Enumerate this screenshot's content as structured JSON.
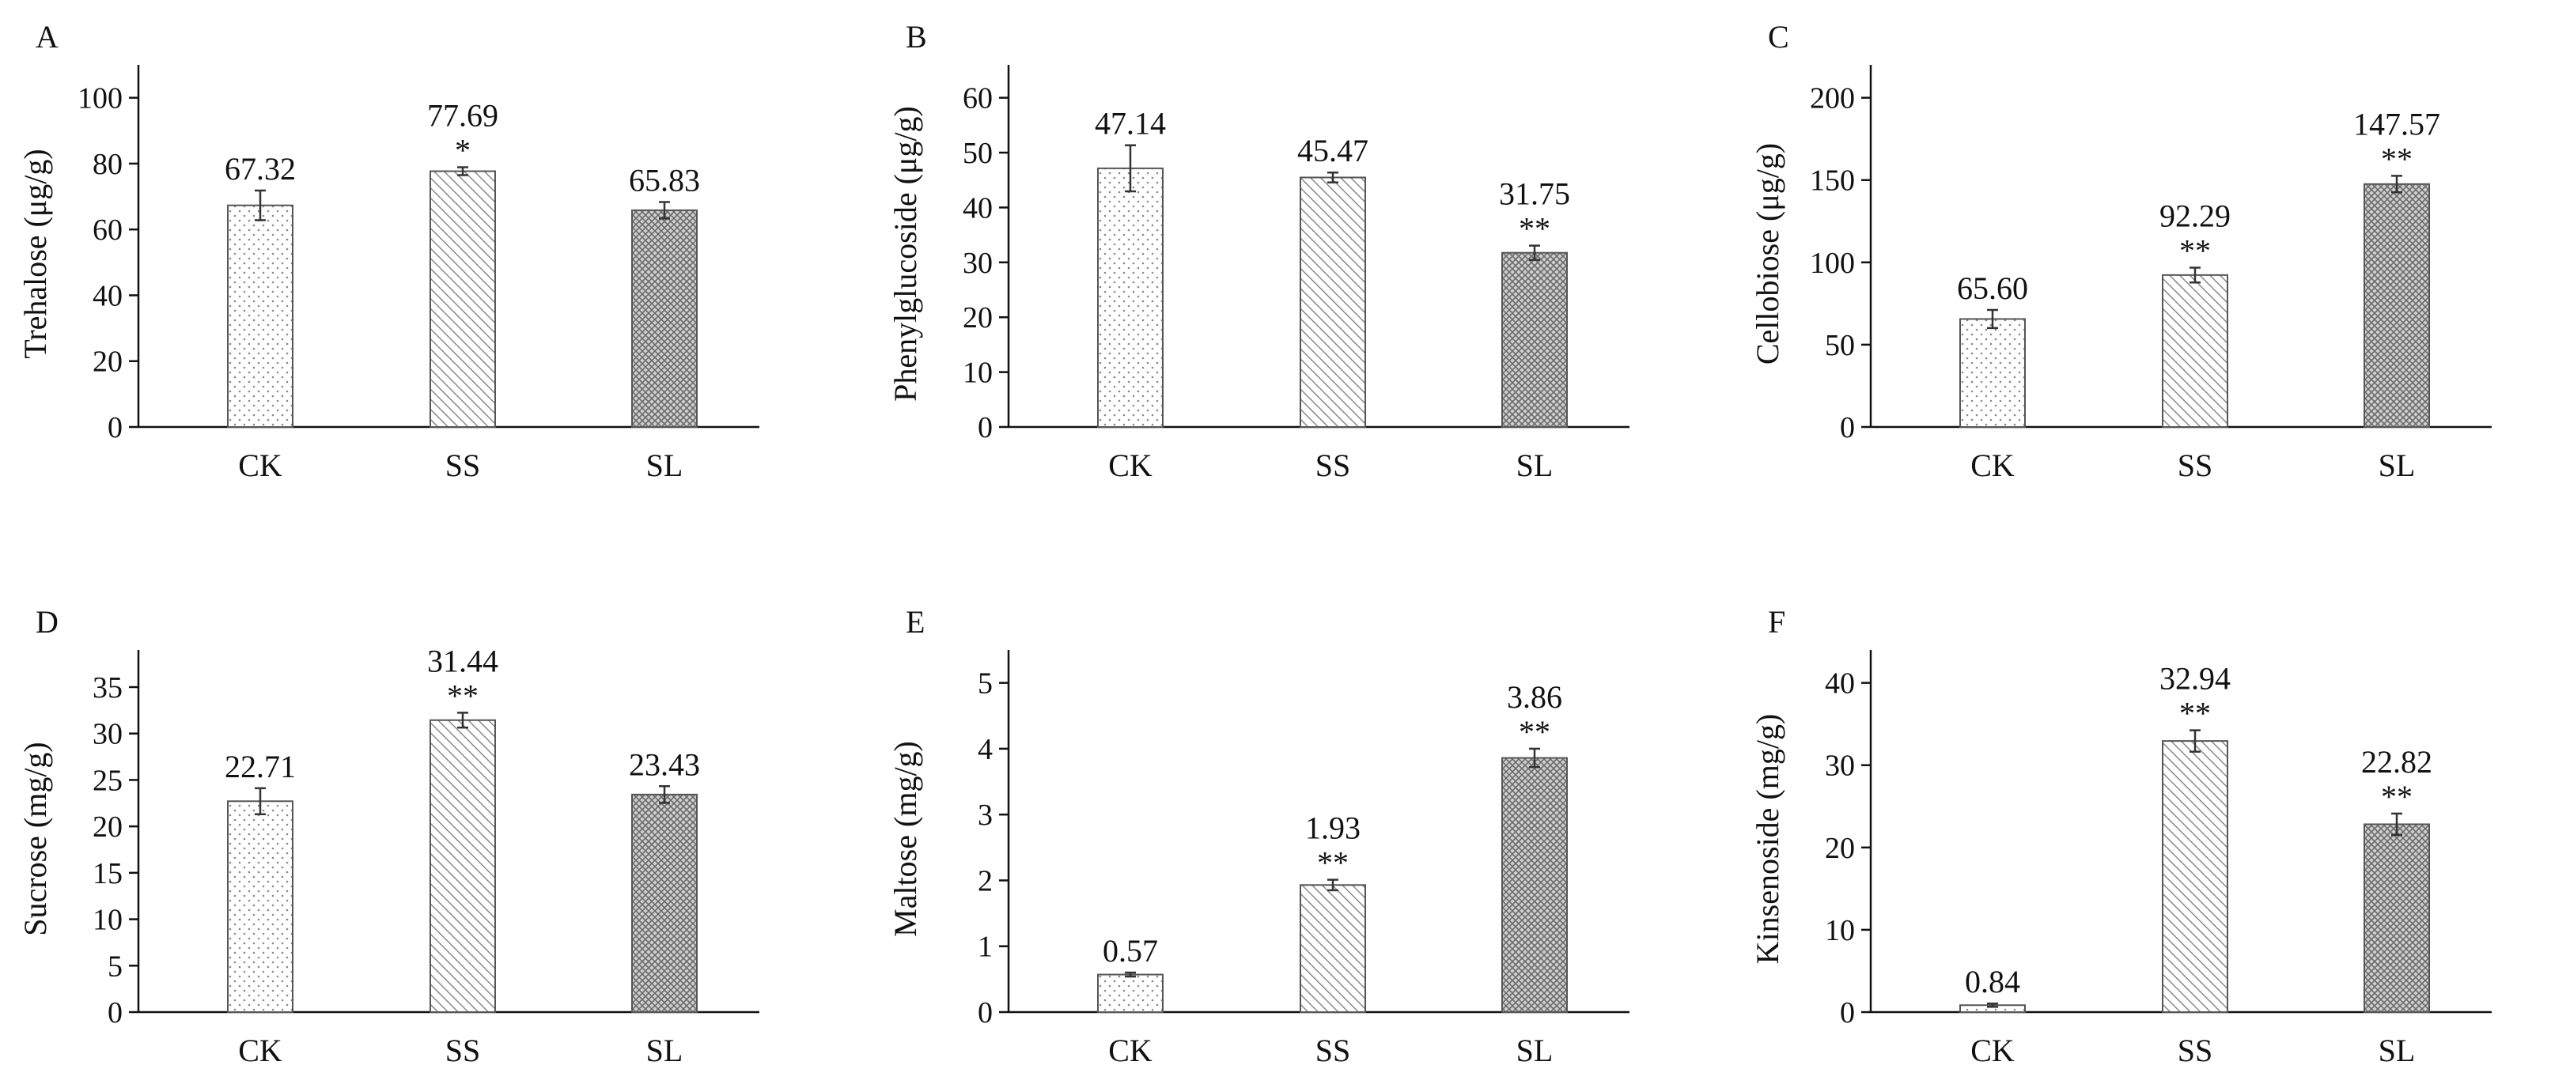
{
  "chart_data": [
    {
      "panel": "A",
      "type": "bar",
      "ylabel": "Trehalose (μg/g)",
      "categories": [
        "CK",
        "SS",
        "SL"
      ],
      "values": [
        67.32,
        77.69,
        65.83
      ],
      "value_labels": [
        "67.32",
        "77.69",
        "65.83"
      ],
      "errors": [
        4.5,
        1.2,
        2.5
      ],
      "significance": [
        "",
        "*",
        ""
      ],
      "ylim": [
        0,
        110
      ],
      "yticks": [
        0,
        20,
        40,
        60,
        80,
        100
      ],
      "ytick_labels": [
        "0",
        "20",
        "40",
        "60",
        "80",
        "100"
      ]
    },
    {
      "panel": "B",
      "type": "bar",
      "ylabel": "Phenylglucoside (μg/g)",
      "categories": [
        "CK",
        "SS",
        "SL"
      ],
      "values": [
        47.14,
        45.47,
        31.75
      ],
      "value_labels": [
        "47.14",
        "45.47",
        "31.75"
      ],
      "errors": [
        4.2,
        0.9,
        1.3
      ],
      "significance": [
        "",
        "",
        "**"
      ],
      "ylim": [
        0,
        66
      ],
      "yticks": [
        0,
        10,
        20,
        30,
        40,
        50,
        60
      ],
      "ytick_labels": [
        "0",
        "10",
        "20",
        "30",
        "40",
        "50",
        "60"
      ]
    },
    {
      "panel": "C",
      "type": "bar",
      "ylabel": "Cellobiose (μg/g)",
      "categories": [
        "CK",
        "SS",
        "SL"
      ],
      "values": [
        65.6,
        92.29,
        147.57
      ],
      "value_labels": [
        "65.60",
        "92.29",
        "147.57"
      ],
      "errors": [
        5.5,
        4.5,
        5.0
      ],
      "significance": [
        "",
        "**",
        "**"
      ],
      "ylim": [
        0,
        220
      ],
      "yticks": [
        0,
        50,
        100,
        150,
        200
      ],
      "ytick_labels": [
        "0",
        "50",
        "100",
        "150",
        "200"
      ]
    },
    {
      "panel": "D",
      "type": "bar",
      "ylabel": "Sucrose (mg/g)",
      "categories": [
        "CK",
        "SS",
        "SL"
      ],
      "values": [
        22.71,
        31.44,
        23.43
      ],
      "value_labels": [
        "22.71",
        "31.44",
        "23.43"
      ],
      "errors": [
        1.4,
        0.8,
        0.9
      ],
      "significance": [
        "",
        "**",
        ""
      ],
      "ylim": [
        0,
        39
      ],
      "yticks": [
        0,
        5,
        10,
        15,
        20,
        25,
        30,
        35
      ],
      "ytick_labels": [
        "0",
        "5",
        "10",
        "15",
        "20",
        "25",
        "30",
        "35"
      ]
    },
    {
      "panel": "E",
      "type": "bar",
      "ylabel": "Maltose (mg/g)",
      "categories": [
        "CK",
        "SS",
        "SL"
      ],
      "values": [
        0.57,
        1.93,
        3.86
      ],
      "value_labels": [
        "0.57",
        "1.93",
        "3.86"
      ],
      "errors": [
        0.03,
        0.08,
        0.14
      ],
      "significance": [
        "",
        "**",
        "**"
      ],
      "ylim": [
        0,
        5.5
      ],
      "yticks": [
        0,
        1,
        2,
        3,
        4,
        5
      ],
      "ytick_labels": [
        "0",
        "1",
        "2",
        "3",
        "4",
        "5"
      ]
    },
    {
      "panel": "F",
      "type": "bar",
      "ylabel": "Kinsenoside (mg/g)",
      "categories": [
        "CK",
        "SS",
        "SL"
      ],
      "values": [
        0.84,
        32.94,
        22.82
      ],
      "value_labels": [
        "0.84",
        "32.94",
        "22.82"
      ],
      "errors": [
        0.2,
        1.3,
        1.3
      ],
      "significance": [
        "",
        "**",
        "**"
      ],
      "ylim": [
        0,
        44
      ],
      "yticks": [
        0,
        10,
        20,
        30,
        40
      ],
      "ytick_labels": [
        "0",
        "10",
        "20",
        "30",
        "40"
      ]
    }
  ]
}
